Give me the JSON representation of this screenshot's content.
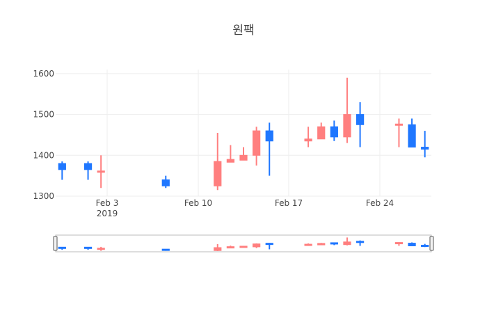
{
  "chart_data": {
    "type": "candlestick",
    "title": "원팩",
    "xlabel": "",
    "ylabel": "",
    "ylim": [
      1300,
      1610
    ],
    "xrange": [
      "2019-01-30",
      "2019-02-27"
    ],
    "yticks": [
      1300,
      1400,
      1500,
      1600
    ],
    "xticks": [
      {
        "date": "2019-02-03",
        "label": "Feb 3",
        "sublabel": "2019"
      },
      {
        "date": "2019-02-10",
        "label": "Feb 10",
        "sublabel": ""
      },
      {
        "date": "2019-02-17",
        "label": "Feb 17",
        "sublabel": ""
      },
      {
        "date": "2019-02-24",
        "label": "Feb 24",
        "sublabel": ""
      }
    ],
    "colors": {
      "increasing": "#ff7f7f",
      "decreasing": "#1f77ff"
    },
    "grid": true,
    "rangeslider": true,
    "series": [
      {
        "date": "2019-01-30",
        "open": 1380,
        "high": 1385,
        "low": 1340,
        "close": 1365
      },
      {
        "date": "2019-02-01",
        "open": 1380,
        "high": 1385,
        "low": 1340,
        "close": 1365
      },
      {
        "date": "2019-02-02",
        "open": 1360,
        "high": 1400,
        "low": 1320,
        "close": 1360
      },
      {
        "date": "2019-02-07",
        "open": 1340,
        "high": 1350,
        "low": 1320,
        "close": 1325
      },
      {
        "date": "2019-02-11",
        "open": 1325,
        "high": 1455,
        "low": 1315,
        "close": 1385
      },
      {
        "date": "2019-02-12",
        "open": 1383,
        "high": 1425,
        "low": 1383,
        "close": 1390
      },
      {
        "date": "2019-02-13",
        "open": 1388,
        "high": 1420,
        "low": 1388,
        "close": 1400
      },
      {
        "date": "2019-02-14",
        "open": 1400,
        "high": 1470,
        "low": 1375,
        "close": 1460
      },
      {
        "date": "2019-02-15",
        "open": 1460,
        "high": 1480,
        "low": 1350,
        "close": 1435
      },
      {
        "date": "2019-02-18",
        "open": 1435,
        "high": 1470,
        "low": 1420,
        "close": 1440
      },
      {
        "date": "2019-02-19",
        "open": 1440,
        "high": 1480,
        "low": 1440,
        "close": 1470
      },
      {
        "date": "2019-02-20",
        "open": 1470,
        "high": 1485,
        "low": 1435,
        "close": 1445
      },
      {
        "date": "2019-02-21",
        "open": 1445,
        "high": 1590,
        "low": 1430,
        "close": 1500
      },
      {
        "date": "2019-02-22",
        "open": 1500,
        "high": 1530,
        "low": 1420,
        "close": 1475
      },
      {
        "date": "2019-02-25",
        "open": 1475,
        "high": 1490,
        "low": 1420,
        "close": 1475
      },
      {
        "date": "2019-02-26",
        "open": 1475,
        "high": 1490,
        "low": 1420,
        "close": 1420
      },
      {
        "date": "2019-02-27",
        "open": 1420,
        "high": 1460,
        "low": 1395,
        "close": 1415
      }
    ]
  }
}
